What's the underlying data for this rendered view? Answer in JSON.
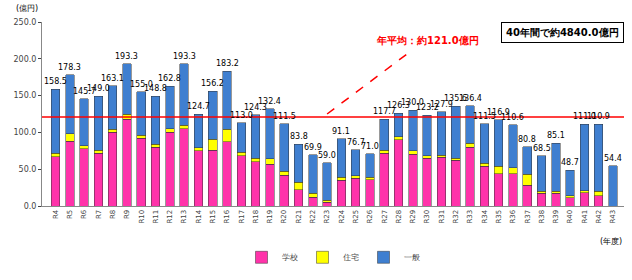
{
  "chart_data": {
    "type": "bar",
    "stacked": true,
    "grid": false,
    "legend": "bottom",
    "y_label": "(億円)",
    "x_label": "(年度)",
    "annotation": "40年間で約4840.0億円",
    "average": 121.0,
    "average_label": "年平均：約121.0億円",
    "average_color": "#ff0000",
    "ylim": [
      0,
      250
    ],
    "yticks": [
      {
        "value": 0,
        "label": "0.0"
      },
      {
        "value": 50,
        "label": "50.0"
      },
      {
        "value": 100,
        "label": "100.0"
      },
      {
        "value": 150,
        "label": "150.0"
      },
      {
        "value": 200,
        "label": "200.0"
      },
      {
        "value": 250,
        "label": "250.0"
      }
    ],
    "categories": [
      "R4",
      "R5",
      "R6",
      "R7",
      "R8",
      "R9",
      "R10",
      "R11",
      "R12",
      "R13",
      "R14",
      "R15",
      "R16",
      "R17",
      "R18",
      "R19",
      "R20",
      "R21",
      "R22",
      "R23",
      "R24",
      "R25",
      "R26",
      "R27",
      "R28",
      "R29",
      "R30",
      "R31",
      "R32",
      "R33",
      "R34",
      "R35",
      "R36",
      "R37",
      "R38",
      "R39",
      "R40",
      "R41",
      "R42",
      "R43"
    ],
    "series": [
      {
        "name": "学校",
        "color": "#ff33aa",
        "values": [
          67,
          88,
          78,
          72,
          100,
          118,
          92,
          80,
          100,
          105,
          75,
          76,
          87,
          68,
          60,
          57,
          42,
          22,
          12,
          5,
          35,
          38,
          36,
          72,
          90,
          70,
          65,
          66,
          62,
          80,
          54,
          44,
          44,
          28,
          17,
          17,
          11,
          18,
          14,
          0
        ]
      },
      {
        "name": "住宅",
        "color": "#ffff00",
        "values": [
          5,
          10,
          4,
          4,
          4,
          7,
          4,
          4,
          5,
          5,
          4,
          15,
          17,
          5,
          5,
          7,
          5,
          10,
          5,
          3,
          4,
          3,
          3,
          4,
          4,
          5,
          3,
          3,
          3,
          5,
          4,
          10,
          8,
          15,
          3,
          3,
          3,
          3,
          6,
          0
        ]
      },
      {
        "name": "一般",
        "color": "#3f7fd0",
        "values": [
          86.5,
          80.3,
          63.7,
          73,
          59.1,
          68.3,
          59,
          64.8,
          57.8,
          83.3,
          45.7,
          65.2,
          79.2,
          40,
          59.3,
          68.4,
          64.5,
          51.8,
          52.9,
          51,
          52.1,
          35.7,
          32,
          41.7,
          32.3,
          55,
          55.2,
          58.9,
          70.6,
          51.4,
          53.5,
          62.9,
          58.6,
          37.8,
          48.5,
          65.1,
          34.7,
          90,
          90.9,
          54.4
        ]
      }
    ],
    "totals": [
      158.5,
      178.3,
      145.7,
      149.0,
      163.1,
      193.3,
      155.0,
      148.8,
      162.8,
      193.3,
      124.7,
      156.2,
      183.2,
      113.0,
      124.3,
      132.4,
      111.5,
      83.8,
      69.9,
      59.0,
      91.1,
      76.7,
      71.0,
      117.7,
      126.3,
      130.0,
      123.2,
      127.9,
      135.6,
      136.4,
      111.5,
      116.9,
      110.6,
      80.8,
      68.5,
      85.1,
      48.7,
      111.0,
      110.9,
      54.4
    ],
    "total_labels": [
      "158.5",
      "178.3",
      "145.7",
      "149.0",
      "163.1",
      "193.3",
      "155.0",
      "148.8",
      "162.8",
      "193.3",
      "124.7",
      "156.2",
      "183.2",
      "113.0",
      "124.3",
      "132.4",
      "111.5",
      "83.8",
      "69.9",
      "59.0",
      "91.1",
      "76.7",
      "71.0",
      "117.7",
      "126.3",
      "130.0",
      "123.2",
      "127.9",
      "135.6",
      "136.4",
      "111.5",
      "116.9",
      "110.6",
      "80.8",
      "68.5",
      "85.1",
      "48.7",
      "111.0",
      "110.9",
      "54.4"
    ]
  }
}
